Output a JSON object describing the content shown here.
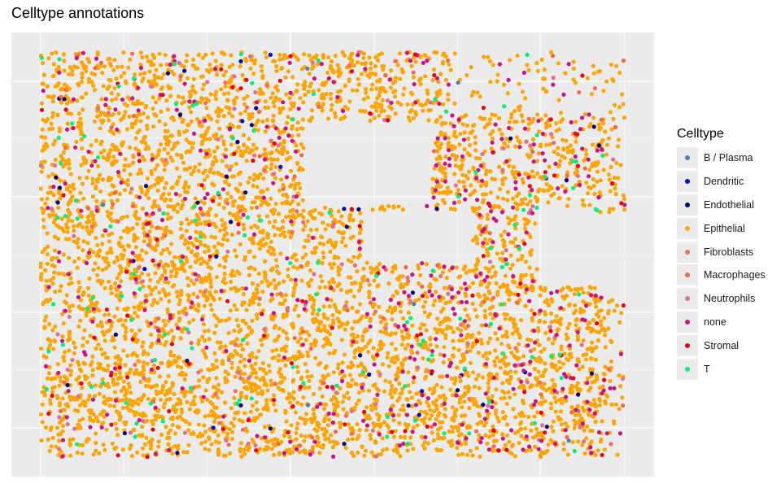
{
  "chart_data": {
    "type": "scatter",
    "title": "Celltype annotations",
    "xlabel": "",
    "ylabel": "",
    "grid": true,
    "legend_title": "Celltype",
    "legend_position": "right",
    "x_axis_ticks_visible": false,
    "y_axis_ticks_visible": false,
    "categories": [
      "B / Plasma",
      "Dendritic",
      "Endothelial",
      "Epithelial",
      "Fibroblasts",
      "Macrophages",
      "Neutrophils",
      "none",
      "Stromal",
      "T"
    ],
    "colors": {
      "B / Plasma": "#4682b4",
      "Dendritic": "#0000cd",
      "Endothelial": "#000080",
      "Epithelial": "#ffa500",
      "Fibroblasts": "#fa6b5a",
      "Macrophages": "#f06a44",
      "Neutrophils": "#d97293",
      "none": "#c71585",
      "Stromal": "#e8000b",
      "T": "#00ee76"
    },
    "approx_counts": {
      "B / Plasma": 6,
      "Dendritic": 10,
      "Endothelial": 45,
      "Epithelial": 5200,
      "Fibroblasts": 60,
      "Macrophages": 70,
      "Neutrophils": 120,
      "none": 420,
      "Stromal": 110,
      "T": 120
    },
    "xlim": [
      0,
      100
    ],
    "ylim": [
      0,
      100
    ],
    "panel_background": "#ebebeb",
    "gridline_color": "#ffffff"
  }
}
